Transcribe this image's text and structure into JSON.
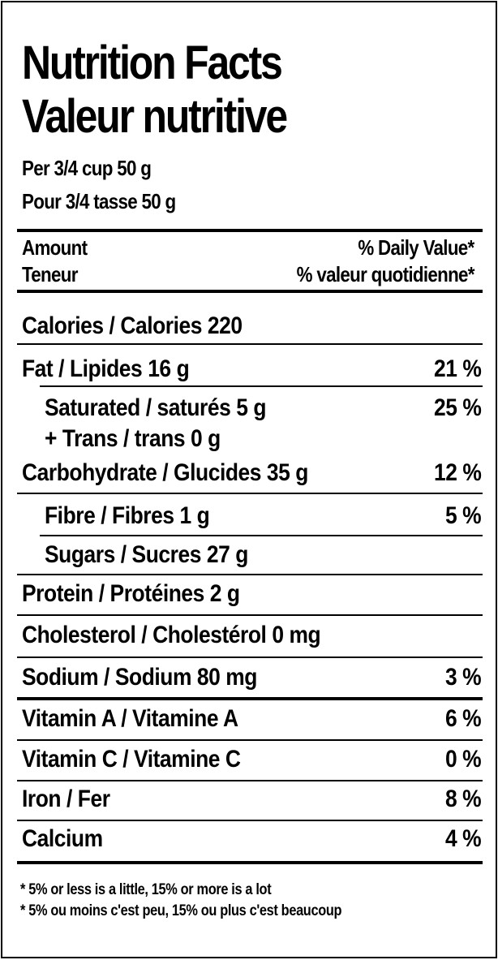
{
  "title_en": "Nutrition Facts",
  "title_fr": "Valeur nutritive",
  "serving_en": "Per 3/4 cup 50 g",
  "serving_fr": "Pour 3/4 tasse 50 g",
  "header": {
    "amount_en": "Amount",
    "amount_fr": "Teneur",
    "dv_en": "% Daily Value*",
    "dv_fr": "% valeur quotidienne*"
  },
  "rows": {
    "calories": "Calories / Calories 220",
    "fat": "Fat / Lipides 16 g",
    "fat_pct": "21 %",
    "saturated": "Saturated / saturés 5 g",
    "saturated_pct": "25 %",
    "trans": "+ Trans / trans 0 g",
    "carbohydrate": "Carbohydrate / Glucides 35 g",
    "carbohydrate_pct": "12 %",
    "fibre": "Fibre / Fibres 1 g",
    "fibre_pct": "5 %",
    "sugars": "Sugars / Sucres 27 g",
    "protein": "Protein / Protéines 2 g",
    "cholesterol": "Cholesterol / Cholestérol 0 mg",
    "sodium": "Sodium / Sodium 80 mg",
    "sodium_pct": "3 %",
    "vitamin_a": "Vitamin A / Vitamine A",
    "vitamin_a_pct": "6 %",
    "vitamin_c": "Vitamin C / Vitamine C",
    "vitamin_c_pct": "0 %",
    "iron": "Iron / Fer",
    "iron_pct": "8 %",
    "calcium": "Calcium",
    "calcium_pct": "4 %"
  },
  "footnote_en": "* 5% or less is a little, 15% or more is a lot",
  "footnote_fr": "* 5% ou moins c'est peu, 15% ou plus c'est beaucoup"
}
